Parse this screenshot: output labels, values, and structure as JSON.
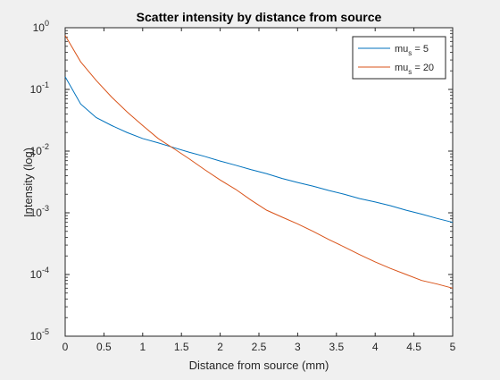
{
  "chart_data": {
    "type": "line",
    "title": "Scatter intensity by distance from source",
    "xlabel": "Distance from source (mm)",
    "ylabel": "Intensity (log)",
    "xlim": [
      0,
      5
    ],
    "ylim": [
      1e-05,
      1
    ],
    "yscale": "log",
    "grid": false,
    "legend_position": "top-right",
    "x_ticks": [
      0,
      0.5,
      1,
      1.5,
      2,
      2.5,
      3,
      3.5,
      4,
      4.5,
      5
    ],
    "x_tick_labels": [
      "0",
      "0.5",
      "1",
      "1.5",
      "2",
      "2.5",
      "3",
      "3.5",
      "4",
      "4.5",
      "5"
    ],
    "y_ticks": [
      {
        "value": 1e-05,
        "base": "10",
        "exp": "-5"
      },
      {
        "value": 0.0001,
        "base": "10",
        "exp": "-4"
      },
      {
        "value": 0.001,
        "base": "10",
        "exp": "-3"
      },
      {
        "value": 0.01,
        "base": "10",
        "exp": "-2"
      },
      {
        "value": 0.1,
        "base": "10",
        "exp": "-1"
      },
      {
        "value": 1,
        "base": "10",
        "exp": "0"
      }
    ],
    "x": [
      0,
      0.2,
      0.4,
      0.6,
      0.8,
      1.0,
      1.2,
      1.4,
      1.6,
      1.8,
      2.0,
      2.2,
      2.4,
      2.6,
      2.8,
      3.0,
      3.2,
      3.4,
      3.6,
      3.8,
      4.0,
      4.2,
      4.4,
      4.6,
      4.8,
      5.0
    ],
    "series": [
      {
        "legend_main": "mu",
        "legend_sub": "s",
        "legend_tail": " = 5",
        "color": "#0072BD",
        "values": [
          0.16,
          0.058,
          0.035,
          0.026,
          0.02,
          0.016,
          0.0136,
          0.0114,
          0.0096,
          0.0082,
          0.0069,
          0.0059,
          0.005,
          0.0043,
          0.0036,
          0.0031,
          0.0027,
          0.0023,
          0.002,
          0.0017,
          0.0015,
          0.0013,
          0.0011,
          0.00095,
          0.00081,
          0.0007
        ]
      },
      {
        "legend_main": "mu",
        "legend_sub": "s",
        "legend_tail": " = 20",
        "color": "#D95319",
        "values": [
          0.75,
          0.28,
          0.14,
          0.075,
          0.043,
          0.026,
          0.016,
          0.011,
          0.0075,
          0.005,
          0.0034,
          0.0024,
          0.0016,
          0.0011,
          0.00085,
          0.00066,
          0.0005,
          0.00037,
          0.00028,
          0.00021,
          0.00016,
          0.000125,
          0.0001,
          8e-05,
          7e-05,
          6e-05
        ]
      }
    ]
  }
}
